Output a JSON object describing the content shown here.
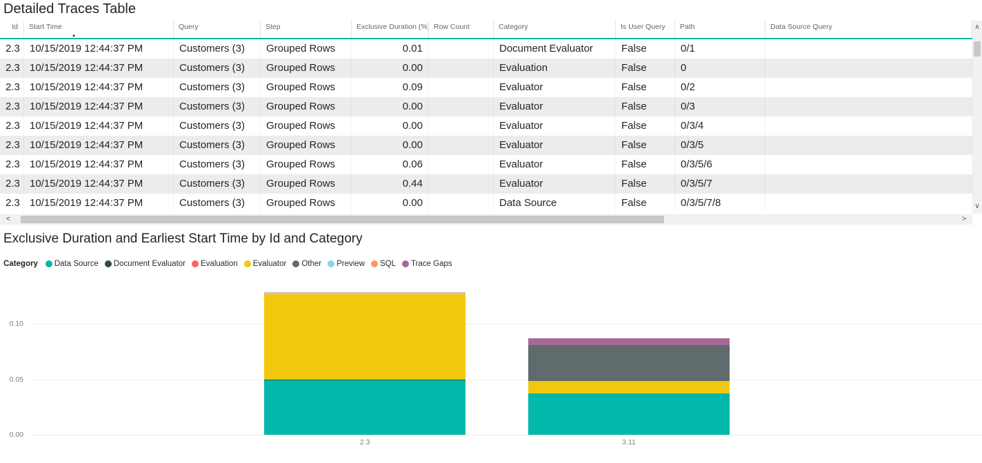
{
  "table": {
    "title": "Detailed Traces Table",
    "sorted_column": "Start Time",
    "sort_direction": "ascending",
    "columns": [
      "Id",
      "Start Time",
      "Query",
      "Step",
      "Exclusive Duration (%)",
      "Row Count",
      "Category",
      "Is User Query",
      "Path",
      "Data Source Query"
    ],
    "rows": [
      [
        "2.3",
        "10/15/2019 12:44:37 PM",
        "Customers (3)",
        "Grouped Rows",
        "0.01",
        "",
        "Document Evaluator",
        "False",
        "0/1",
        ""
      ],
      [
        "2.3",
        "10/15/2019 12:44:37 PM",
        "Customers (3)",
        "Grouped Rows",
        "0.00",
        "",
        "Evaluation",
        "False",
        "0",
        ""
      ],
      [
        "2.3",
        "10/15/2019 12:44:37 PM",
        "Customers (3)",
        "Grouped Rows",
        "0.09",
        "",
        "Evaluator",
        "False",
        "0/2",
        ""
      ],
      [
        "2.3",
        "10/15/2019 12:44:37 PM",
        "Customers (3)",
        "Grouped Rows",
        "0.00",
        "",
        "Evaluator",
        "False",
        "0/3",
        ""
      ],
      [
        "2.3",
        "10/15/2019 12:44:37 PM",
        "Customers (3)",
        "Grouped Rows",
        "0.00",
        "",
        "Evaluator",
        "False",
        "0/3/4",
        ""
      ],
      [
        "2.3",
        "10/15/2019 12:44:37 PM",
        "Customers (3)",
        "Grouped Rows",
        "0.00",
        "",
        "Evaluator",
        "False",
        "0/3/5",
        ""
      ],
      [
        "2.3",
        "10/15/2019 12:44:37 PM",
        "Customers (3)",
        "Grouped Rows",
        "0.06",
        "",
        "Evaluator",
        "False",
        "0/3/5/6",
        ""
      ],
      [
        "2.3",
        "10/15/2019 12:44:37 PM",
        "Customers (3)",
        "Grouped Rows",
        "0.44",
        "",
        "Evaluator",
        "False",
        "0/3/5/7",
        ""
      ],
      [
        "2.3",
        "10/15/2019 12:44:37 PM",
        "Customers (3)",
        "Grouped Rows",
        "0.00",
        "",
        "Data Source",
        "False",
        "0/3/5/7/8",
        ""
      ]
    ]
  },
  "icons": {
    "sort_ascending": "▲",
    "scroll_left": "<",
    "scroll_right": ">",
    "scroll_up": "∧",
    "scroll_down": "∨"
  },
  "chart_data": {
    "type": "bar",
    "stacked": true,
    "title": "Exclusive Duration and Earliest Start Time by Id and Category",
    "legend_title": "Category",
    "legend_position": "top",
    "grid": true,
    "categories": [
      "2.3",
      "3.11"
    ],
    "yticks": [
      "0.00",
      "0.05",
      "0.10"
    ],
    "ylim": [
      0,
      0.135
    ],
    "legend": [
      {
        "label": "Data Source",
        "color": "#01B8AA"
      },
      {
        "label": "Document Evaluator",
        "color": "#374649"
      },
      {
        "label": "Evaluation",
        "color": "#FD625E"
      },
      {
        "label": "Evaluator",
        "color": "#F2C80F"
      },
      {
        "label": "Other",
        "color": "#5F6B6D"
      },
      {
        "label": "Preview",
        "color": "#8AD4EB"
      },
      {
        "label": "SQL",
        "color": "#FE9666"
      },
      {
        "label": "Trace Gaps",
        "color": "#A66999"
      }
    ],
    "bars": [
      {
        "category": "2.3",
        "segments": [
          {
            "name": "Data Source",
            "value": 0.049,
            "color": "#01B8AA"
          },
          {
            "name": "Document Evaluator",
            "value": 0.0006,
            "color": "#374649"
          },
          {
            "name": "Evaluator",
            "value": 0.077,
            "color": "#F2C80F"
          },
          {
            "name": "Other",
            "value": 0.002,
            "color": "#C6C6CA"
          }
        ]
      },
      {
        "category": "3.11",
        "segments": [
          {
            "name": "Data Source",
            "value": 0.037,
            "color": "#01B8AA"
          },
          {
            "name": "Evaluator",
            "value": 0.011,
            "color": "#F2C80F"
          },
          {
            "name": "Other",
            "value": 0.032,
            "color": "#5F6B6D"
          },
          {
            "name": "Trace Gaps",
            "value": 0.006,
            "color": "#A66999"
          }
        ]
      }
    ]
  }
}
